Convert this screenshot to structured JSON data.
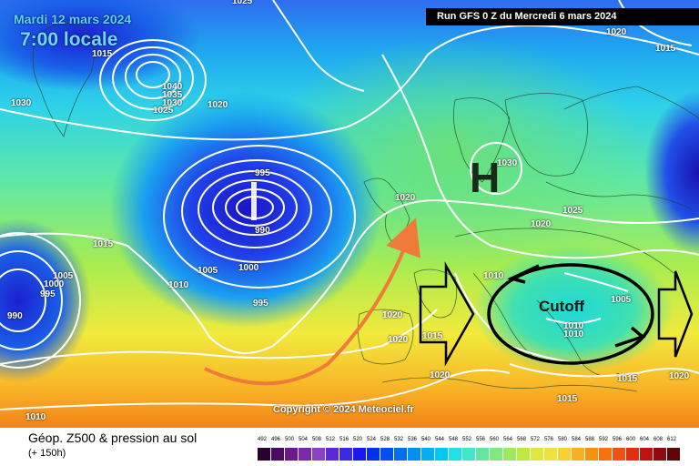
{
  "header": {
    "valid_date": "Mardi 12 mars 2024",
    "local_time": "7:00 locale",
    "run_info": "Run GFS 0 Z du Mercredi 6 mars 2024"
  },
  "map": {
    "copyright": "Copyright © 2024 Meteociel.fr",
    "pressure_centres": [
      {
        "label": "H",
        "type": "high"
      },
      {
        "label": "Cutoff",
        "type": "cutoff-low"
      }
    ],
    "isobar_labels": [
      "1025",
      "1015",
      "1030",
      "1040",
      "1035",
      "1030",
      "1025",
      "1020",
      "1020",
      "1015",
      "995",
      "990",
      "1005",
      "1000",
      "1010",
      "1005",
      "1000",
      "995",
      "990",
      "995",
      "1020",
      "1030",
      "1020",
      "1025",
      "1020",
      "1015",
      "1010",
      "1005",
      "1010",
      "1010",
      "1020",
      "1020",
      "1015",
      "1020",
      "1015",
      "1015",
      "1010"
    ],
    "colors": {
      "isobars": "#ffffff",
      "flow_arrow": "#f07a3a",
      "cutoff_outline": "#000000"
    }
  },
  "footer": {
    "title": "Géop. Z500 & pression au sol",
    "subtitle": "(+ 150h)",
    "scale_labels": [
      "492",
      "496",
      "500",
      "504",
      "508",
      "512",
      "516",
      "520",
      "524",
      "528",
      "532",
      "536",
      "540",
      "544",
      "548",
      "552",
      "556",
      "560",
      "564",
      "568",
      "572",
      "576",
      "580",
      "584",
      "588",
      "592",
      "596",
      "600",
      "604",
      "608",
      "612"
    ],
    "scale_colors": [
      "#2a0030",
      "#4a0a60",
      "#6a1a8a",
      "#7a2aa8",
      "#8a40c8",
      "#5a2ad8",
      "#3a2ae8",
      "#1a1af0",
      "#0030f0",
      "#0050f0",
      "#0070f0",
      "#0090f0",
      "#00b0f0",
      "#00c8f0",
      "#20e0e8",
      "#40e8c8",
      "#60e8a0",
      "#80e880",
      "#a0e860",
      "#c0e840",
      "#e0e840",
      "#f0e040",
      "#f8d030",
      "#f8b020",
      "#f89010",
      "#f87010",
      "#f05010",
      "#e03010",
      "#c01010",
      "#900810",
      "#600408"
    ]
  }
}
